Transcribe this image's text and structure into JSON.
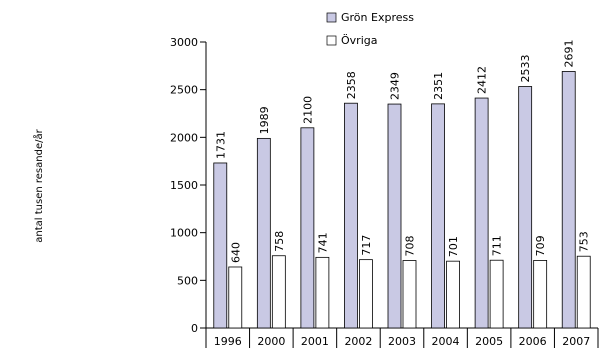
{
  "chart_data": {
    "type": "bar",
    "categories": [
      "1996",
      "2000",
      "2001",
      "2002",
      "2003",
      "2004",
      "2005",
      "2006",
      "2007"
    ],
    "series": [
      {
        "name": "Grön Express",
        "values": [
          1731,
          1989,
          2100,
          2358,
          2349,
          2351,
          2412,
          2533,
          2691
        ],
        "color": "#c9c9e4"
      },
      {
        "name": "Övriga",
        "values": [
          640,
          758,
          741,
          717,
          708,
          701,
          711,
          709,
          753
        ],
        "color": "#ffffff"
      }
    ],
    "title": "",
    "xlabel": "",
    "ylabel": "antal tusen resande/år",
    "ylim": [
      0,
      3000
    ],
    "yticks": [
      0,
      500,
      1000,
      1500,
      2000,
      2500,
      3000
    ],
    "grid": false,
    "legend": "top"
  }
}
